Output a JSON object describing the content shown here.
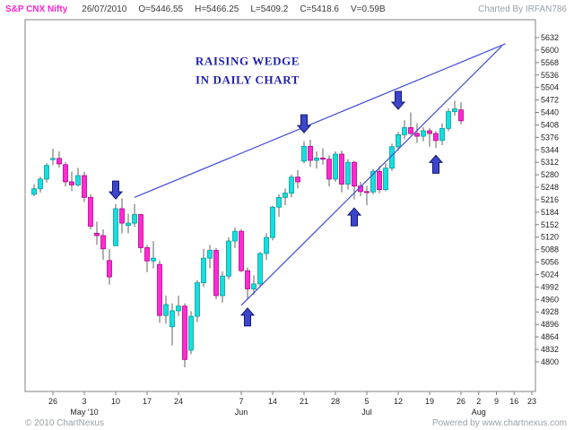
{
  "header": {
    "symbol": "S&P CNX Nifty",
    "date": "26/07/2010",
    "open": "O=5446.55",
    "high": "H=5466.25",
    "low": "L=5409.2",
    "close": "C=5418.6",
    "volume": "V=0.59B",
    "credit": "Charted By IRFAN786"
  },
  "footer": {
    "copyright": "© 2010 ChartNexus",
    "powered_by": "Powered by www.chartnexus.com"
  },
  "chart_data": {
    "type": "candlestick",
    "symbol": "S&P CNX Nifty",
    "timeframe": "daily",
    "ylim": [
      4713,
      5672
    ],
    "ohlc_format": [
      "date",
      "open",
      "high",
      "low",
      "close"
    ],
    "candles": [
      [
        "Apr 21",
        5230,
        5255,
        5225,
        5244
      ],
      [
        "Apr 22",
        5244,
        5275,
        5234,
        5269
      ],
      [
        "Apr 23",
        5269,
        5310,
        5260,
        5304
      ],
      [
        "Apr 26",
        5319,
        5347,
        5305,
        5322
      ],
      [
        "Apr 27",
        5322,
        5340,
        5298,
        5308
      ],
      [
        "Apr 28",
        5306,
        5312,
        5250,
        5262
      ],
      [
        "Apr 29",
        5262,
        5288,
        5238,
        5254
      ],
      [
        "Apr 30",
        5254,
        5298,
        5250,
        5278
      ],
      [
        "May 3",
        5278,
        5288,
        5210,
        5222
      ],
      [
        "May 4",
        5222,
        5230,
        5140,
        5148
      ],
      [
        "May 5",
        5130,
        5160,
        5100,
        5124
      ],
      [
        "May 6",
        5124,
        5140,
        5062,
        5090
      ],
      [
        "May 7",
        5060,
        5090,
        4998,
        5018
      ],
      [
        "May 10",
        5098,
        5205,
        5098,
        5193
      ],
      [
        "May 11",
        5193,
        5220,
        5130,
        5156
      ],
      [
        "May 12",
        5150,
        5180,
        5130,
        5156
      ],
      [
        "May 13",
        5156,
        5205,
        5146,
        5178
      ],
      [
        "May 14",
        5178,
        5180,
        5080,
        5093
      ],
      [
        "May 17",
        5093,
        5100,
        5030,
        5059
      ],
      [
        "May 18",
        5059,
        5110,
        5040,
        5066
      ],
      [
        "May 19",
        5050,
        5060,
        4900,
        4919
      ],
      [
        "May 20",
        4919,
        4970,
        4898,
        4947
      ],
      [
        "May 21",
        4890,
        4950,
        4842,
        4931
      ],
      [
        "May 24",
        4931,
        4970,
        4918,
        4943
      ],
      [
        "May 25",
        4943,
        4950,
        4786,
        4806
      ],
      [
        "May 26",
        4830,
        4930,
        4820,
        4917
      ],
      [
        "May 27",
        4917,
        5010,
        4902,
        5003
      ],
      [
        "May 28",
        5003,
        5090,
        4992,
        5066
      ],
      [
        "May 31",
        5066,
        5100,
        5040,
        5086
      ],
      [
        "Jun 1",
        5086,
        5092,
        4961,
        4970
      ],
      [
        "Jun 2",
        4970,
        5032,
        4952,
        5020
      ],
      [
        "Jun 3",
        5020,
        5120,
        5012,
        5110
      ],
      [
        "Jun 4",
        5110,
        5145,
        5092,
        5135
      ],
      [
        "Jun 7",
        5135,
        5140,
        5030,
        5034
      ],
      [
        "Jun 8",
        5034,
        5042,
        4960,
        4987
      ],
      [
        "Jun 9",
        4987,
        5022,
        4972,
        5000
      ],
      [
        "Jun 10",
        5000,
        5082,
        4992,
        5078
      ],
      [
        "Jun 11",
        5078,
        5130,
        5062,
        5119
      ],
      [
        "Jun 14",
        5119,
        5200,
        5112,
        5197
      ],
      [
        "Jun 15",
        5197,
        5230,
        5172,
        5222
      ],
      [
        "Jun 16",
        5222,
        5245,
        5202,
        5233
      ],
      [
        "Jun 17",
        5233,
        5280,
        5222,
        5274
      ],
      [
        "Jun 18",
        5274,
        5292,
        5245,
        5262
      ],
      [
        "Jun 21",
        5315,
        5366,
        5310,
        5353
      ],
      [
        "Jun 22",
        5353,
        5370,
        5300,
        5317
      ],
      [
        "Jun 23",
        5317,
        5340,
        5296,
        5323
      ],
      [
        "Jun 24",
        5323,
        5348,
        5306,
        5320
      ],
      [
        "Jun 25",
        5320,
        5330,
        5250,
        5269
      ],
      [
        "Jun 28",
        5269,
        5340,
        5262,
        5333
      ],
      [
        "Jun 29",
        5333,
        5342,
        5235,
        5256
      ],
      [
        "Jun 30",
        5256,
        5320,
        5242,
        5312
      ],
      [
        "Jul 1",
        5312,
        5316,
        5217,
        5251
      ],
      [
        "Jul 2",
        5251,
        5262,
        5225,
        5237
      ],
      [
        "Jul 5",
        5237,
        5252,
        5202,
        5236
      ],
      [
        "Jul 6",
        5236,
        5295,
        5230,
        5289
      ],
      [
        "Jul 7",
        5289,
        5302,
        5233,
        5242
      ],
      [
        "Jul 8",
        5242,
        5310,
        5238,
        5297
      ],
      [
        "Jul 9",
        5297,
        5360,
        5290,
        5352
      ],
      [
        "Jul 12",
        5352,
        5390,
        5342,
        5383
      ],
      [
        "Jul 13",
        5383,
        5420,
        5372,
        5401
      ],
      [
        "Jul 14",
        5401,
        5440,
        5382,
        5386
      ],
      [
        "Jul 15",
        5386,
        5412,
        5362,
        5379
      ],
      [
        "Jul 16",
        5379,
        5402,
        5366,
        5393
      ],
      [
        "Jul 19",
        5393,
        5400,
        5352,
        5386
      ],
      [
        "Jul 20",
        5386,
        5392,
        5349,
        5368
      ],
      [
        "Jul 21",
        5368,
        5412,
        5356,
        5399
      ],
      [
        "Jul 22",
        5399,
        5450,
        5392,
        5442
      ],
      [
        "Jul 23",
        5442,
        5470,
        5432,
        5449
      ],
      [
        "Jul 26",
        5446.55,
        5466.25,
        5409.2,
        5418.6
      ]
    ],
    "y_ticks": [
      5632,
      5600,
      5568,
      5536,
      5504,
      5472,
      5440,
      5408,
      5376,
      5344,
      5312,
      5280,
      5248,
      5216,
      5184,
      5152,
      5120,
      5088,
      5056,
      5024,
      4992,
      4960,
      4928,
      4896,
      4864,
      4832,
      4800
    ],
    "x_ticks": [
      {
        "slot": 3,
        "label": "26"
      },
      {
        "slot": 8,
        "label": "3"
      },
      {
        "slot": 13,
        "label": "10"
      },
      {
        "slot": 18,
        "label": "17"
      },
      {
        "slot": 23,
        "label": "24"
      },
      {
        "slot": 33,
        "label": "7"
      },
      {
        "slot": 38,
        "label": "14"
      },
      {
        "slot": 43,
        "label": "21"
      },
      {
        "slot": 48,
        "label": "28"
      },
      {
        "slot": 53,
        "label": "5"
      },
      {
        "slot": 58,
        "label": "12"
      },
      {
        "slot": 63,
        "label": "19"
      },
      {
        "slot": 68,
        "label": "26"
      },
      {
        "slot": 73,
        "label": "2"
      },
      {
        "slot": 78,
        "label": "9"
      },
      {
        "slot": 83,
        "label": "16"
      },
      {
        "slot": 88,
        "label": "23"
      }
    ],
    "month_labels": [
      {
        "slot": 8,
        "label": "May '10"
      },
      {
        "slot": 33,
        "label": "Jun"
      },
      {
        "slot": 53,
        "label": "Jul"
      },
      {
        "slot": 73,
        "label": "Aug"
      }
    ],
    "annotation": {
      "lines": [
        "RAISING WEDGE",
        "IN DAILY CHART"
      ],
      "slot": 34,
      "prices": [
        5562,
        5514
      ],
      "color": "#1f1fae"
    },
    "trendlines": [
      {
        "name": "wedge-upper-trendline",
        "from": {
          "slot": 16,
          "price": 5222
        },
        "to": {
          "slot": 80.5,
          "price": 5616
        }
      },
      {
        "name": "wedge-lower-trendline",
        "from": {
          "slot": 33,
          "price": 4945
        },
        "to": {
          "slot": 79.5,
          "price": 5610
        }
      }
    ],
    "arrows": [
      {
        "slot": 13,
        "dir": "down",
        "tip_price": 5218
      },
      {
        "slot": 43,
        "dir": "down",
        "tip_price": 5388
      },
      {
        "slot": 58,
        "dir": "down",
        "tip_price": 5448
      },
      {
        "slot": 34,
        "dir": "up",
        "tip_price": 4938
      },
      {
        "slot": 51,
        "dir": "up",
        "tip_price": 5195
      },
      {
        "slot": 64,
        "dir": "up",
        "tip_price": 5330
      }
    ],
    "colors": {
      "up_candle": "#17dede",
      "up_candle_edge": "#009f9f",
      "down_candle": "#ff2bd0",
      "down_candle_edge": "#b8008f",
      "wick": "#606060",
      "trendline": "#3f4bd8",
      "arrow": "#3b46cc",
      "arrow_edge": "#14166e",
      "axis_text": "#222222",
      "border": "#808080",
      "symbol_text": "#ff22cc",
      "muted_text": "#9aa0a6"
    }
  }
}
